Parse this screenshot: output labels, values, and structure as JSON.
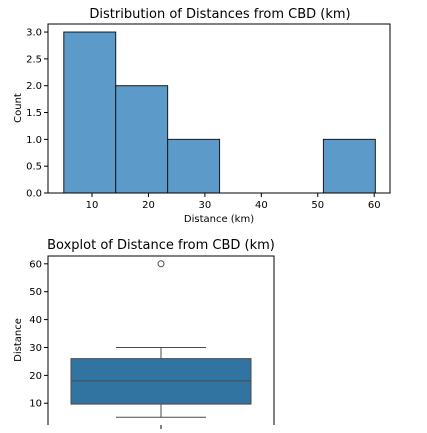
{
  "chart_data": [
    {
      "type": "bar",
      "subtype": "histogram",
      "title": "Distribution of Distances from CBD (km)",
      "xlabel": "Distance (km)",
      "ylabel": "Count",
      "xlim": [
        2.2,
        62.8
      ],
      "ylim": [
        0,
        3.15
      ],
      "bins": [
        {
          "x0": 5.0,
          "x1": 14.2,
          "count": 3
        },
        {
          "x0": 14.2,
          "x1": 23.4,
          "count": 2
        },
        {
          "x0": 23.4,
          "x1": 32.6,
          "count": 1
        },
        {
          "x0": 32.6,
          "x1": 41.8,
          "count": 0
        },
        {
          "x0": 41.8,
          "x1": 51.0,
          "count": 0
        },
        {
          "x0": 51.0,
          "x1": 60.2,
          "count": 1
        }
      ],
      "xticks": [
        "10",
        "20",
        "30",
        "40",
        "50",
        "60"
      ],
      "yticks": [
        "0.0",
        "0.5",
        "1.0",
        "1.5",
        "2.0",
        "2.5",
        "3.0"
      ],
      "bar_color": "#5b9ac9",
      "grid": false
    },
    {
      "type": "box",
      "title": "Boxplot of Distance from CBD (km)",
      "ylabel": "Distance",
      "ylim": [
        2.2,
        62.8
      ],
      "whisker_low": 5,
      "q1": 9.7,
      "median": 18,
      "q3": 26,
      "whisker_high": 30,
      "outliers": [
        60
      ],
      "yticks": [
        "10",
        "20",
        "30",
        "40",
        "50",
        "60"
      ],
      "box_color": "#3274a1",
      "grid": false
    }
  ]
}
